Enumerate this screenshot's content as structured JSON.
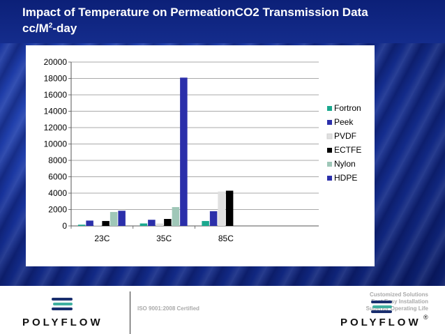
{
  "title_line1": "Impact of Temperature on PermeationCO2 Transmission Data",
  "title_line2_pre": "cc/M",
  "title_line2_sup": "2",
  "title_line2_post": "-day",
  "footer": {
    "brand_left": "POLYFLOW",
    "iso": "ISO 9001:2008 Certified",
    "tagline": [
      "Customized Solutions",
      "Fast Easy Installation",
      "Superior Operating Life"
    ],
    "brand_right": "POLYFLOW",
    "registered": "®",
    "logo_icon": "polyflow-logo-icon"
  },
  "chart_data": {
    "type": "bar",
    "categories": [
      "23C",
      "35C",
      "85C"
    ],
    "series": [
      {
        "name": "Fortron",
        "color": "#1aa88e",
        "values": [
          150,
          300,
          600
        ]
      },
      {
        "name": "Peek",
        "color": "#2b2faa",
        "values": [
          650,
          750,
          1800
        ]
      },
      {
        "name": "PVDF",
        "color": "#e0e0e0",
        "values": [
          100,
          300,
          4200
        ]
      },
      {
        "name": "ECTFE",
        "color": "#000000",
        "values": [
          600,
          850,
          4300
        ]
      },
      {
        "name": "Nylon",
        "color": "#9fc7b8",
        "values": [
          1700,
          2300,
          0
        ]
      },
      {
        "name": "HDPE",
        "color": "#2b2faa",
        "values": [
          1850,
          18100,
          0
        ]
      }
    ],
    "yticks": [
      0,
      2000,
      4000,
      6000,
      8000,
      10000,
      12000,
      14000,
      16000,
      18000,
      20000
    ],
    "ylim": [
      0,
      20000
    ],
    "grid": true,
    "legend": "right"
  }
}
